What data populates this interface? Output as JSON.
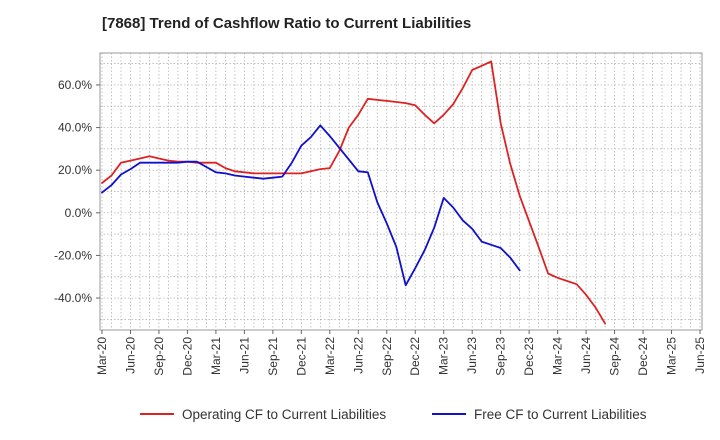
{
  "chart_data": {
    "type": "line",
    "title": "[7868]  Trend of Cashflow Ratio to Current Liabilities",
    "xlabel": "",
    "ylabel": "",
    "x_ticks": [
      "Mar-20",
      "Jun-20",
      "Sep-20",
      "Dec-20",
      "Mar-21",
      "Jun-21",
      "Sep-21",
      "Dec-21",
      "Mar-22",
      "Jun-22",
      "Sep-22",
      "Dec-22",
      "Mar-23",
      "Jun-23",
      "Sep-23",
      "Dec-23",
      "Mar-24",
      "Jun-24",
      "Sep-24",
      "Dec-24",
      "Mar-25",
      "Jun-25"
    ],
    "y_ticks": [
      {
        "value": -40,
        "label": "-40.0%"
      },
      {
        "value": -20,
        "label": "-20.0%"
      },
      {
        "value": 0,
        "label": "0.0%"
      },
      {
        "value": 20,
        "label": "20.0%"
      },
      {
        "value": 40,
        "label": "40.0%"
      },
      {
        "value": 60,
        "label": "60.0%"
      }
    ],
    "ylim": [
      -55,
      75
    ],
    "grid": true,
    "legend_position": "bottom",
    "series": [
      {
        "name": "Operating CF to Current Liabilities",
        "color": "#dd2222",
        "points": [
          [
            "Mar-20",
            14.0
          ],
          [
            "Apr-20",
            17.5
          ],
          [
            "May-20",
            23.5
          ],
          [
            "Jun-20",
            24.5
          ],
          [
            "Jul-20",
            25.5
          ],
          [
            "Aug-20",
            26.5
          ],
          [
            "Sep-20",
            25.5
          ],
          [
            "Oct-20",
            24.5
          ],
          [
            "Nov-20",
            24.0
          ],
          [
            "Dec-20",
            24.0
          ],
          [
            "Jan-21",
            23.5
          ],
          [
            "Feb-21",
            23.5
          ],
          [
            "Mar-21",
            23.5
          ],
          [
            "Apr-21",
            21.0
          ],
          [
            "May-21",
            19.5
          ],
          [
            "Jun-21",
            19.0
          ],
          [
            "Jul-21",
            18.5
          ],
          [
            "Aug-21",
            18.5
          ],
          [
            "Sep-21",
            18.5
          ],
          [
            "Oct-21",
            18.5
          ],
          [
            "Nov-21",
            18.5
          ],
          [
            "Dec-21",
            18.5
          ],
          [
            "Jan-22",
            19.5
          ],
          [
            "Feb-22",
            20.5
          ],
          [
            "Mar-22",
            21.0
          ],
          [
            "Apr-22",
            29.0
          ],
          [
            "May-22",
            40.0
          ],
          [
            "Jun-22",
            46.0
          ],
          [
            "Jul-22",
            53.5
          ],
          [
            "Aug-22",
            53.0
          ],
          [
            "Sep-22",
            52.5
          ],
          [
            "Oct-22",
            52.0
          ],
          [
            "Nov-22",
            51.5
          ],
          [
            "Dec-22",
            50.5
          ],
          [
            "Jan-23",
            46.0
          ],
          [
            "Feb-23",
            42.0
          ],
          [
            "Mar-23",
            46.0
          ],
          [
            "Apr-23",
            51.0
          ],
          [
            "May-23",
            58.5
          ],
          [
            "Jun-23",
            67.0
          ],
          [
            "Jul-23",
            69.0
          ],
          [
            "Aug-23",
            71.0
          ],
          [
            "Sep-23",
            42.0
          ],
          [
            "Oct-23",
            23.0
          ],
          [
            "Nov-23",
            8.0
          ],
          [
            "Dec-23",
            -4.0
          ],
          [
            "Jan-24",
            -16.0
          ],
          [
            "Feb-24",
            -28.5
          ],
          [
            "Mar-24",
            -30.5
          ],
          [
            "Apr-24",
            -32.0
          ],
          [
            "May-24",
            -33.5
          ],
          [
            "Jun-24",
            -38.5
          ],
          [
            "Jul-24",
            -44.5
          ],
          [
            "Aug-24",
            -52.0
          ]
        ]
      },
      {
        "name": "Free CF to Current Liabilities",
        "color": "#1111cc",
        "points": [
          [
            "Mar-20",
            9.5
          ],
          [
            "Apr-20",
            13.0
          ],
          [
            "May-20",
            18.0
          ],
          [
            "Jun-20",
            20.5
          ],
          [
            "Jul-20",
            23.5
          ],
          [
            "Aug-20",
            23.5
          ],
          [
            "Sep-20",
            23.5
          ],
          [
            "Oct-20",
            23.5
          ],
          [
            "Nov-20",
            23.5
          ],
          [
            "Dec-20",
            24.0
          ],
          [
            "Jan-21",
            24.0
          ],
          [
            "Feb-21",
            21.5
          ],
          [
            "Mar-21",
            19.0
          ],
          [
            "Apr-21",
            18.5
          ],
          [
            "May-21",
            17.5
          ],
          [
            "Jun-21",
            17.0
          ],
          [
            "Jul-21",
            16.5
          ],
          [
            "Aug-21",
            16.0
          ],
          [
            "Sep-21",
            16.5
          ],
          [
            "Oct-21",
            17.0
          ],
          [
            "Nov-21",
            23.5
          ],
          [
            "Dec-21",
            31.5
          ],
          [
            "Jan-22",
            35.5
          ],
          [
            "Feb-22",
            41.0
          ],
          [
            "Mar-22",
            36.0
          ],
          [
            "Apr-22",
            30.5
          ],
          [
            "May-22",
            25.0
          ],
          [
            "Jun-22",
            19.5
          ],
          [
            "Jul-22",
            19.0
          ],
          [
            "Aug-22",
            5.0
          ],
          [
            "Sep-22",
            -5.0
          ],
          [
            "Oct-22",
            -16.0
          ],
          [
            "Nov-22",
            -34.0
          ],
          [
            "Dec-22",
            -26.0
          ],
          [
            "Jan-23",
            -17.5
          ],
          [
            "Feb-23",
            -7.0
          ],
          [
            "Mar-23",
            7.0
          ],
          [
            "Apr-23",
            2.5
          ],
          [
            "May-23",
            -3.5
          ],
          [
            "Jun-23",
            -7.5
          ],
          [
            "Jul-23",
            -13.5
          ],
          [
            "Aug-23",
            -15.0
          ],
          [
            "Sep-23",
            -16.5
          ],
          [
            "Oct-23",
            -21.0
          ],
          [
            "Nov-23",
            -27.0
          ]
        ]
      }
    ]
  }
}
